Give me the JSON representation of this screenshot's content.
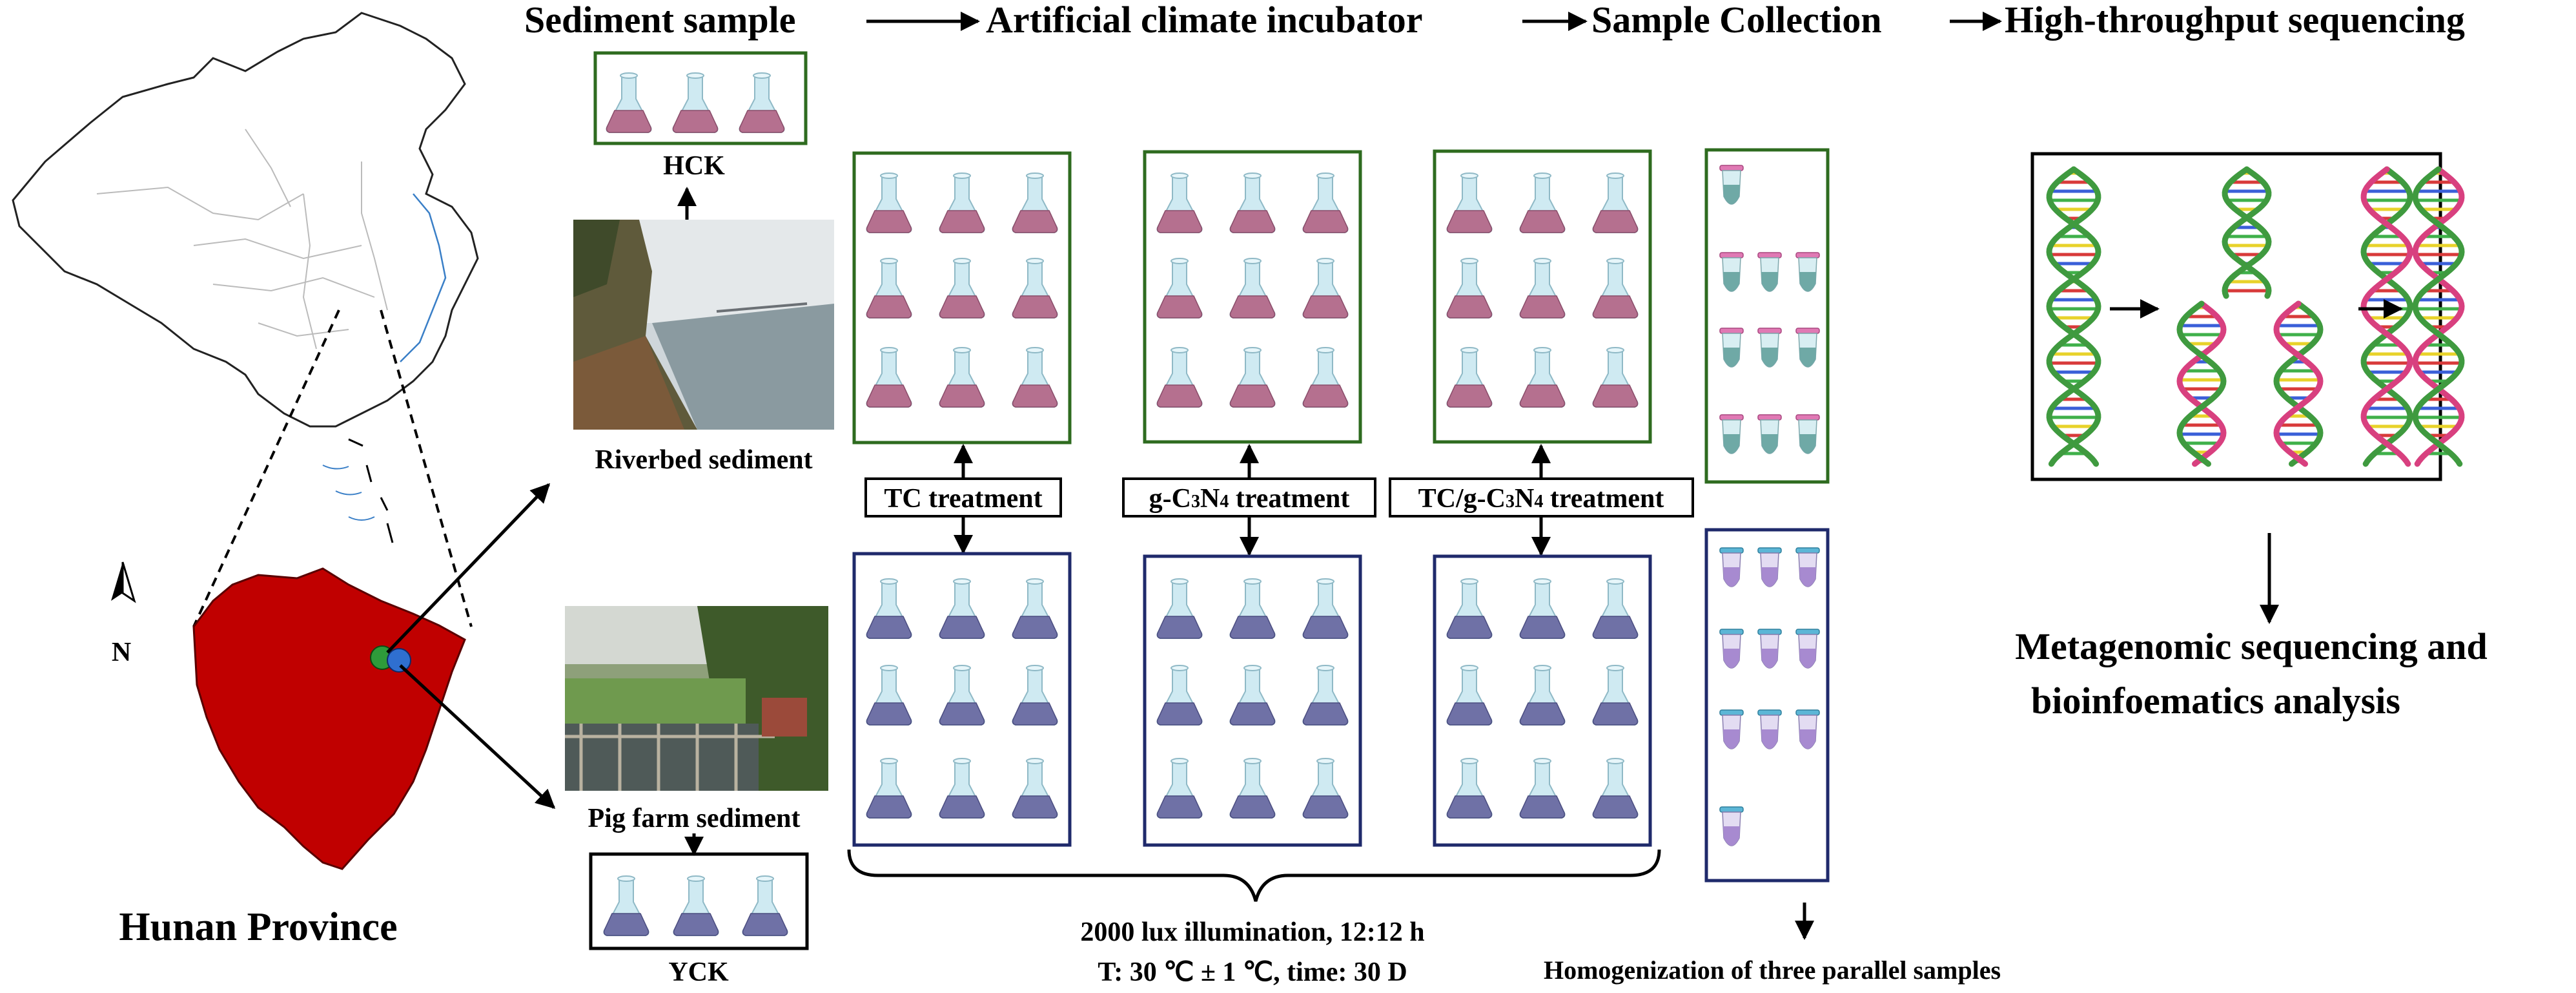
{
  "workflow": {
    "steps": [
      "Sediment sample",
      "Artificial climate incubator",
      "Sample Collection",
      "High-throughput sequencing"
    ]
  },
  "map": {
    "north_label": "N",
    "province_label": "Hunan Province"
  },
  "sites": {
    "river_label": "Riverbed sediment",
    "pig_label": "Pig farm sediment"
  },
  "controls": {
    "river_control": "HCK",
    "pig_control": "YCK"
  },
  "treatments": {
    "tc": "TC treatment",
    "gcn_prefix": "g-C",
    "gcn_sub1": "3",
    "gcn_mid": "N",
    "gcn_sub2": "4",
    "gcn_suffix": " treatment",
    "tcgcn_prefix": "TC/g-C",
    "tcgcn_sub1": "3",
    "tcgcn_mid": "N",
    "tcgcn_sub2": "4",
    "tcgcn_suffix": " treatment"
  },
  "conditions": {
    "line1": "2000 lux illumination, 12:12 h",
    "line2": "T: 30 ℃ ± 1 ℃, time: 30 D"
  },
  "collection": {
    "note": "Homogenization of three parallel samples"
  },
  "sequencing": {
    "line1": "Metagenomic sequencing and",
    "line2": "bioinfoematics analysis"
  },
  "colors": {
    "map_fill": "#c00000",
    "green_box": "#2e6b1f",
    "blue_box": "#1f2a6b",
    "pink_liquid": "#b5708f",
    "purple_liquid": "#6f71a6",
    "flask_glass": "#cfeaf2",
    "tube_pink_cap": "#e079b4",
    "tube_blue_cap": "#5cb6d6",
    "tube_teal": "#6fa9a6",
    "tube_purple": "#a78ad0",
    "dna_green": "#3f9a3f",
    "dna_pink": "#d8407f"
  }
}
